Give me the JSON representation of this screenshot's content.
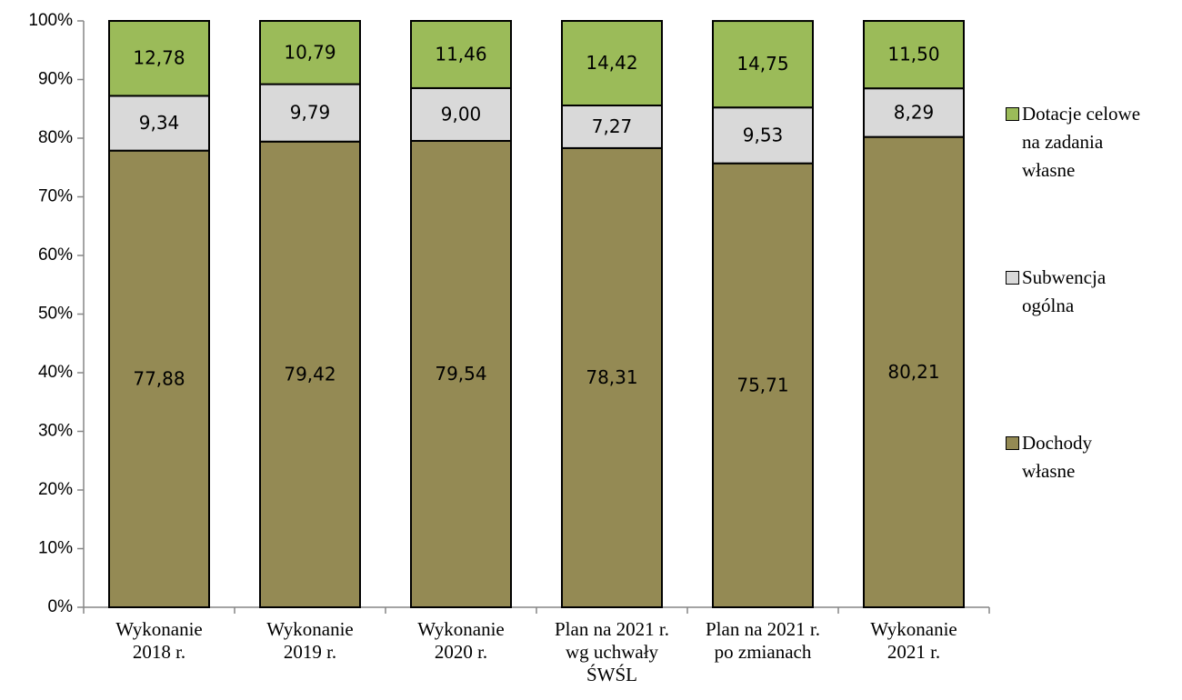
{
  "chart_data": {
    "type": "stacked_bar",
    "categories": [
      "Wykonanie\n2018 r.",
      "Wykonanie\n2019 r.",
      "Wykonanie\n2020 r.",
      "Plan na 2021 r.\nwg uchwały\nŚWŚL",
      "Plan na 2021 r.\npo zmianach",
      "Wykonanie\n2021 r."
    ],
    "series": [
      {
        "name": "Dochody\nwłasne",
        "color": "#948A54",
        "values": [
          77.88,
          79.42,
          79.54,
          78.31,
          75.71,
          80.21
        ],
        "value_labels": [
          "77,88",
          "79,42",
          "79,54",
          "78,31",
          "75,71",
          "80,21"
        ]
      },
      {
        "name": "Subwencja\nogólna",
        "color": "#D9D9D9",
        "values": [
          9.34,
          9.79,
          9.0,
          7.27,
          9.53,
          8.29
        ],
        "value_labels": [
          "9,34",
          "9,79",
          "9,00",
          "7,27",
          "9,53",
          "8,29"
        ]
      },
      {
        "name": "Dotacje celowe\nna zadania\nwłasne",
        "color": "#9BBB59",
        "values": [
          12.78,
          10.79,
          11.46,
          14.42,
          14.75,
          11.5
        ],
        "value_labels": [
          "12,78",
          "10,79",
          "11,46",
          "14,42",
          "14,75",
          "11,50"
        ]
      }
    ],
    "ylim": [
      0,
      100
    ],
    "yticks": [
      {
        "value": 0,
        "label": "0%"
      },
      {
        "value": 10,
        "label": "10%"
      },
      {
        "value": 20,
        "label": "20%"
      },
      {
        "value": 30,
        "label": "30%"
      },
      {
        "value": 40,
        "label": "40%"
      },
      {
        "value": 50,
        "label": "50%"
      },
      {
        "value": 60,
        "label": "60%"
      },
      {
        "value": 70,
        "label": "70%"
      },
      {
        "value": 80,
        "label": "80%"
      },
      {
        "value": 90,
        "label": "90%"
      },
      {
        "value": 100,
        "label": "100%"
      }
    ],
    "legend": "right"
  }
}
